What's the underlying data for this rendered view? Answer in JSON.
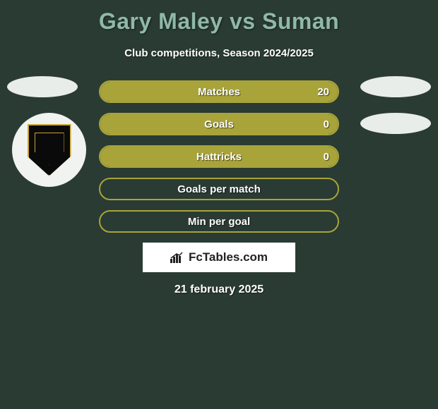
{
  "background_color": "#2a3b33",
  "title": {
    "text": "Gary Maley vs Suman",
    "color": "#8fb8a8",
    "fontsize": 32
  },
  "subtitle": {
    "text": "Club competitions, Season 2024/2025",
    "color": "#ffffff",
    "fontsize": 15
  },
  "player_spots": {
    "fill": "#e8ede9"
  },
  "club_badge": {
    "bg": "#f0f3f0",
    "shield_fill": "#0a0a0a",
    "shield_border": "#c9a536"
  },
  "bars": {
    "border_color": "#a9a43a",
    "fill_color": "#a9a43a",
    "text_color": "#ffffff",
    "label_fontsize": 15,
    "rows": [
      {
        "label": "Matches",
        "value": "20",
        "fill_pct": 100
      },
      {
        "label": "Goals",
        "value": "0",
        "fill_pct": 100
      },
      {
        "label": "Hattricks",
        "value": "0",
        "fill_pct": 100
      },
      {
        "label": "Goals per match",
        "value": "",
        "fill_pct": 0
      },
      {
        "label": "Min per goal",
        "value": "",
        "fill_pct": 0
      }
    ]
  },
  "branding": {
    "text": "FcTables.com",
    "bg": "#ffffff",
    "text_color": "#222222"
  },
  "date": {
    "text": "21 february 2025",
    "color": "#ffffff",
    "fontsize": 16
  }
}
